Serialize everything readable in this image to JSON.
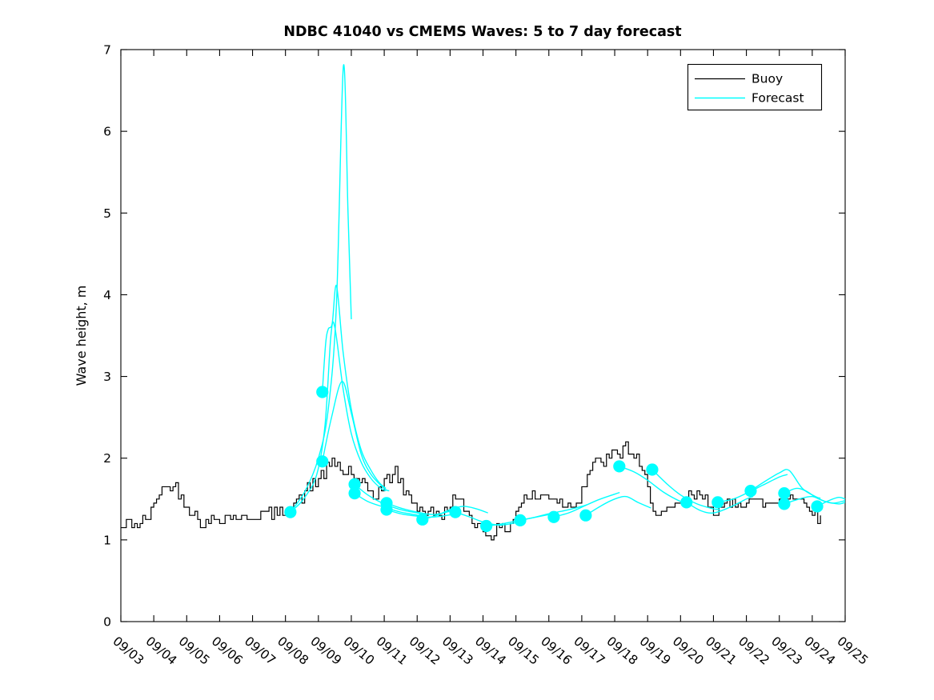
{
  "figure": {
    "background": "#ffffff",
    "axis_color": "#000000"
  },
  "chart_data": {
    "type": "line",
    "title": "NDBC 41040 vs CMEMS Waves: 5 to 7 day forecast",
    "ylabel": "Wave height, m",
    "xlabel": "",
    "ylim": [
      0,
      7
    ],
    "ytick_labels": [
      "0",
      "1",
      "2",
      "3",
      "4",
      "5",
      "6",
      "7"
    ],
    "xtick_labels": [
      "09/03",
      "09/04",
      "09/05",
      "09/06",
      "09/07",
      "09/08",
      "09/09",
      "09/10",
      "09/11",
      "09/12",
      "09/13",
      "09/14",
      "09/15",
      "09/16",
      "09/17",
      "09/18",
      "09/19",
      "09/20",
      "09/21",
      "09/22",
      "09/23",
      "09/24",
      "09/25"
    ],
    "x_domain_days": [
      3,
      25
    ],
    "grid": false,
    "legend": {
      "position": "top-right",
      "entries": [
        {
          "label": "Buoy",
          "color": "#000000"
        },
        {
          "label": "Forecast",
          "color": "#00ffff"
        }
      ]
    },
    "series": [
      {
        "name": "Buoy",
        "render": "noisy-step-line",
        "color": "#000000",
        "line_width": 1.2,
        "noise": {
          "amplitude": 0.085,
          "quantize": 0.05,
          "seed": 42,
          "samples_per_day": 12
        },
        "anchors": [
          [
            3.0,
            1.15
          ],
          [
            3.25,
            1.2
          ],
          [
            3.6,
            1.2
          ],
          [
            3.9,
            1.3
          ],
          [
            4.15,
            1.62
          ],
          [
            4.5,
            1.66
          ],
          [
            4.75,
            1.6
          ],
          [
            5.0,
            1.45
          ],
          [
            5.3,
            1.25
          ],
          [
            5.6,
            1.18
          ],
          [
            5.9,
            1.28
          ],
          [
            6.3,
            1.3
          ],
          [
            6.7,
            1.25
          ],
          [
            7.0,
            1.3
          ],
          [
            7.4,
            1.3
          ],
          [
            7.8,
            1.33
          ],
          [
            8.1,
            1.38
          ],
          [
            8.5,
            1.52
          ],
          [
            8.8,
            1.68
          ],
          [
            9.1,
            1.8
          ],
          [
            9.35,
            1.9
          ],
          [
            9.6,
            1.95
          ],
          [
            9.75,
            1.8
          ],
          [
            9.95,
            1.85
          ],
          [
            10.15,
            1.72
          ],
          [
            10.45,
            1.6
          ],
          [
            10.7,
            1.55
          ],
          [
            11.0,
            1.68
          ],
          [
            11.35,
            1.85
          ],
          [
            11.6,
            1.58
          ],
          [
            11.9,
            1.45
          ],
          [
            12.2,
            1.35
          ],
          [
            12.5,
            1.32
          ],
          [
            12.8,
            1.3
          ],
          [
            13.05,
            1.5
          ],
          [
            13.3,
            1.45
          ],
          [
            13.6,
            1.3
          ],
          [
            13.9,
            1.15
          ],
          [
            14.2,
            1.07
          ],
          [
            14.5,
            1.12
          ],
          [
            14.8,
            1.15
          ],
          [
            15.1,
            1.45
          ],
          [
            15.4,
            1.55
          ],
          [
            15.7,
            1.5
          ],
          [
            16.0,
            1.55
          ],
          [
            16.3,
            1.48
          ],
          [
            16.6,
            1.42
          ],
          [
            16.9,
            1.5
          ],
          [
            17.2,
            1.85
          ],
          [
            17.5,
            1.95
          ],
          [
            17.8,
            2.0
          ],
          [
            18.1,
            2.05
          ],
          [
            18.35,
            2.15
          ],
          [
            18.6,
            2.0
          ],
          [
            18.85,
            1.8
          ],
          [
            19.1,
            1.5
          ],
          [
            19.35,
            1.3
          ],
          [
            19.65,
            1.33
          ],
          [
            19.95,
            1.4
          ],
          [
            20.25,
            1.52
          ],
          [
            20.55,
            1.55
          ],
          [
            20.85,
            1.45
          ],
          [
            21.15,
            1.35
          ],
          [
            21.45,
            1.42
          ],
          [
            21.75,
            1.48
          ],
          [
            22.05,
            1.5
          ],
          [
            22.35,
            1.45
          ],
          [
            22.65,
            1.42
          ],
          [
            22.95,
            1.48
          ],
          [
            23.25,
            1.55
          ],
          [
            23.55,
            1.5
          ],
          [
            23.85,
            1.45
          ],
          [
            24.05,
            1.35
          ],
          [
            24.3,
            1.2
          ]
        ]
      },
      {
        "name": "Forecast",
        "render": "smooth-segments",
        "color": "#00ffff",
        "line_width": 1.4,
        "marker": {
          "shape": "filled-circle",
          "radius": 7.6,
          "color": "#00ffff"
        },
        "markers": [
          [
            8.15,
            1.34
          ],
          [
            9.12,
            2.81
          ],
          [
            9.12,
            1.96
          ],
          [
            10.1,
            1.68
          ],
          [
            10.1,
            1.57
          ],
          [
            11.07,
            1.45
          ],
          [
            11.07,
            1.37
          ],
          [
            12.16,
            1.25
          ],
          [
            13.16,
            1.34
          ],
          [
            14.1,
            1.17
          ],
          [
            15.13,
            1.24
          ],
          [
            16.15,
            1.28
          ],
          [
            17.12,
            1.3
          ],
          [
            18.14,
            1.9
          ],
          [
            19.14,
            1.86
          ],
          [
            20.18,
            1.46
          ],
          [
            21.13,
            1.46
          ],
          [
            22.13,
            1.6
          ],
          [
            23.15,
            1.57
          ],
          [
            23.15,
            1.44
          ],
          [
            24.15,
            1.41
          ]
        ],
        "segments": [
          [
            [
              8.15,
              1.34
            ],
            [
              8.6,
              1.6
            ],
            [
              9.0,
              2.0
            ],
            [
              9.3,
              2.6
            ],
            [
              9.55,
              3.9
            ],
            [
              9.76,
              6.8
            ],
            [
              9.9,
              5.0
            ],
            [
              10.0,
              3.7
            ]
          ],
          [
            [
              8.15,
              1.34
            ],
            [
              8.55,
              1.5
            ],
            [
              8.95,
              1.8
            ],
            [
              9.2,
              2.4
            ],
            [
              9.38,
              3.5
            ],
            [
              9.5,
              3.6
            ],
            [
              9.75,
              2.85
            ],
            [
              10.0,
              2.3
            ],
            [
              10.3,
              1.95
            ],
            [
              10.6,
              1.75
            ],
            [
              10.9,
              1.63
            ],
            [
              11.05,
              1.6
            ]
          ],
          [
            [
              9.12,
              2.81
            ],
            [
              9.22,
              3.4
            ],
            [
              9.3,
              3.58
            ],
            [
              9.42,
              3.65
            ],
            [
              9.55,
              4.11
            ],
            [
              9.75,
              3.3
            ],
            [
              10.0,
              2.6
            ],
            [
              10.3,
              2.1
            ],
            [
              10.6,
              1.85
            ],
            [
              10.85,
              1.7
            ],
            [
              11.05,
              1.63
            ]
          ],
          [
            [
              9.12,
              1.96
            ],
            [
              9.4,
              2.5
            ],
            [
              9.72,
              2.94
            ],
            [
              10.0,
              2.55
            ],
            [
              10.3,
              2.05
            ],
            [
              10.6,
              1.8
            ],
            [
              11.0,
              1.63
            ],
            [
              11.15,
              1.6
            ]
          ],
          [
            [
              10.1,
              1.68
            ],
            [
              10.5,
              1.55
            ],
            [
              11.0,
              1.44
            ],
            [
              11.5,
              1.37
            ],
            [
              12.0,
              1.33
            ],
            [
              12.1,
              1.32
            ]
          ],
          [
            [
              10.1,
              1.57
            ],
            [
              10.5,
              1.47
            ],
            [
              11.0,
              1.4
            ],
            [
              11.5,
              1.34
            ],
            [
              12.05,
              1.3
            ]
          ],
          [
            [
              11.07,
              1.45
            ],
            [
              11.5,
              1.39
            ],
            [
              12.0,
              1.34
            ],
            [
              12.5,
              1.31
            ],
            [
              13.0,
              1.35
            ]
          ],
          [
            [
              11.07,
              1.37
            ],
            [
              11.5,
              1.32
            ],
            [
              12.0,
              1.29
            ],
            [
              12.5,
              1.28
            ],
            [
              13.05,
              1.31
            ]
          ],
          [
            [
              12.16,
              1.25
            ],
            [
              12.6,
              1.3
            ],
            [
              13.0,
              1.37
            ],
            [
              13.4,
              1.41
            ],
            [
              13.8,
              1.38
            ],
            [
              14.15,
              1.33
            ]
          ],
          [
            [
              13.16,
              1.34
            ],
            [
              13.6,
              1.28
            ],
            [
              14.0,
              1.22
            ],
            [
              14.5,
              1.18
            ],
            [
              15.0,
              1.21
            ],
            [
              15.15,
              1.22
            ]
          ],
          [
            [
              14.1,
              1.17
            ],
            [
              14.5,
              1.19
            ],
            [
              15.0,
              1.23
            ],
            [
              15.5,
              1.27
            ],
            [
              16.0,
              1.31
            ],
            [
              16.1,
              1.32
            ]
          ],
          [
            [
              15.13,
              1.24
            ],
            [
              15.6,
              1.28
            ],
            [
              16.0,
              1.32
            ],
            [
              16.5,
              1.36
            ],
            [
              17.0,
              1.41
            ],
            [
              17.15,
              1.43
            ]
          ],
          [
            [
              16.15,
              1.28
            ],
            [
              16.6,
              1.33
            ],
            [
              17.0,
              1.4
            ],
            [
              17.5,
              1.49
            ],
            [
              18.0,
              1.56
            ],
            [
              18.15,
              1.58
            ]
          ],
          [
            [
              17.12,
              1.3
            ],
            [
              17.6,
              1.42
            ],
            [
              18.0,
              1.5
            ],
            [
              18.35,
              1.53
            ],
            [
              18.7,
              1.46
            ],
            [
              19.1,
              1.39
            ]
          ],
          [
            [
              18.14,
              1.9
            ],
            [
              18.6,
              1.83
            ],
            [
              19.0,
              1.73
            ],
            [
              19.5,
              1.58
            ],
            [
              20.0,
              1.47
            ],
            [
              20.2,
              1.45
            ]
          ],
          [
            [
              19.14,
              1.86
            ],
            [
              19.6,
              1.68
            ],
            [
              20.0,
              1.55
            ],
            [
              20.5,
              1.44
            ],
            [
              21.0,
              1.38
            ],
            [
              21.2,
              1.37
            ]
          ],
          [
            [
              20.18,
              1.46
            ],
            [
              20.6,
              1.36
            ],
            [
              21.0,
              1.33
            ],
            [
              21.5,
              1.4
            ],
            [
              22.0,
              1.5
            ],
            [
              22.2,
              1.53
            ]
          ],
          [
            [
              21.13,
              1.46
            ],
            [
              21.6,
              1.5
            ],
            [
              22.0,
              1.57
            ],
            [
              22.5,
              1.67
            ],
            [
              23.0,
              1.77
            ],
            [
              23.25,
              1.8
            ]
          ],
          [
            [
              22.13,
              1.6
            ],
            [
              22.5,
              1.7
            ],
            [
              23.0,
              1.82
            ],
            [
              23.3,
              1.85
            ],
            [
              23.7,
              1.63
            ],
            [
              24.1,
              1.53
            ],
            [
              24.25,
              1.51
            ]
          ],
          [
            [
              23.15,
              1.57
            ],
            [
              23.5,
              1.63
            ],
            [
              23.8,
              1.6
            ],
            [
              24.2,
              1.5
            ],
            [
              24.6,
              1.45
            ],
            [
              25.0,
              1.48
            ]
          ],
          [
            [
              23.15,
              1.44
            ],
            [
              23.6,
              1.5
            ],
            [
              24.0,
              1.53
            ],
            [
              24.4,
              1.47
            ],
            [
              24.8,
              1.44
            ],
            [
              25.0,
              1.46
            ]
          ],
          [
            [
              24.15,
              1.41
            ],
            [
              24.5,
              1.48
            ],
            [
              24.8,
              1.52
            ],
            [
              25.0,
              1.5
            ]
          ]
        ]
      }
    ]
  }
}
